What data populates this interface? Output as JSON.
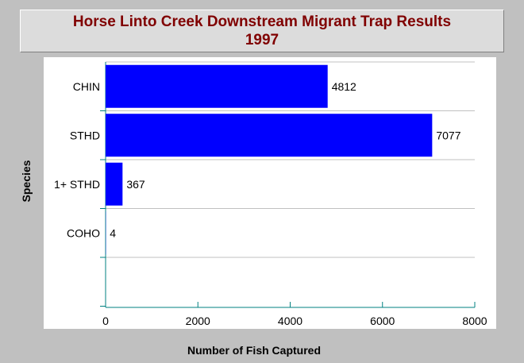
{
  "chart_data": {
    "type": "bar",
    "orientation": "horizontal",
    "title": "Horse Linto Creek Downstream Migrant Trap Results",
    "subtitle": "1997",
    "xlabel": "Number of Fish Captured",
    "ylabel": "Species",
    "categories": [
      "CHIN",
      "STHD",
      "1+ STHD",
      "COHO"
    ],
    "values": [
      4812,
      7077,
      367,
      4
    ],
    "xlim": [
      0,
      8000
    ],
    "xticks": [
      0,
      2000,
      4000,
      6000,
      8000
    ],
    "grid": "horizontal",
    "legend": "none",
    "colors": {
      "bar": "#0000ff",
      "title": "#800000",
      "axis": "#008080",
      "grid": "#c0c0c0",
      "background": "#c0c0c0"
    }
  }
}
